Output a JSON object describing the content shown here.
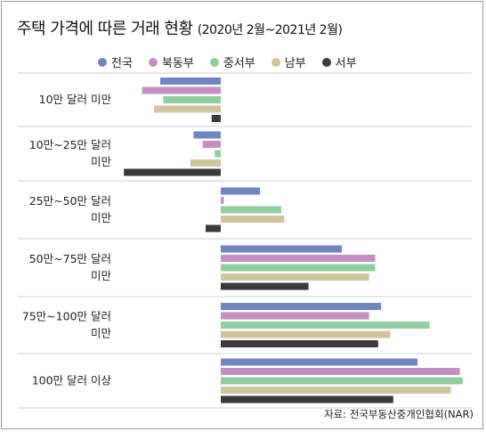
{
  "title": "주택 가격에 따른 거래 현황",
  "subtitle": "(2020년 2월~2021년 2월)",
  "source": "자료: 전국부동산중개인협회(NAR)",
  "chart_data": {
    "type": "bar",
    "orientation": "horizontal",
    "categories": [
      [
        "10만 달러 미만"
      ],
      [
        "10만~25만 달러",
        "미만"
      ],
      [
        "25만~50만 달러",
        "미만"
      ],
      [
        "50만~75만 달러",
        "미만"
      ],
      [
        "75만~100만 달러",
        "미만"
      ],
      [
        "100만 달러 이상"
      ]
    ],
    "series": [
      {
        "name": "전국",
        "color": "#6f86c4",
        "values": [
          -20,
          -9,
          13,
          40,
          53,
          65
        ]
      },
      {
        "name": "북동부",
        "color": "#c58fc4",
        "values": [
          -26,
          -6,
          1,
          51,
          49,
          79
        ]
      },
      {
        "name": "중서부",
        "color": "#8fcf9f",
        "values": [
          -19,
          -2,
          20,
          51,
          69,
          80
        ]
      },
      {
        "name": "남부",
        "color": "#cfc49a",
        "values": [
          -22,
          -10,
          21,
          49,
          56,
          76
        ]
      },
      {
        "name": "서부",
        "color": "#3a3a3a",
        "values": [
          -3,
          -32,
          -5,
          29,
          52,
          57
        ]
      }
    ],
    "xlim": [
      -32,
      80
    ],
    "legend": "top",
    "grid": false
  }
}
